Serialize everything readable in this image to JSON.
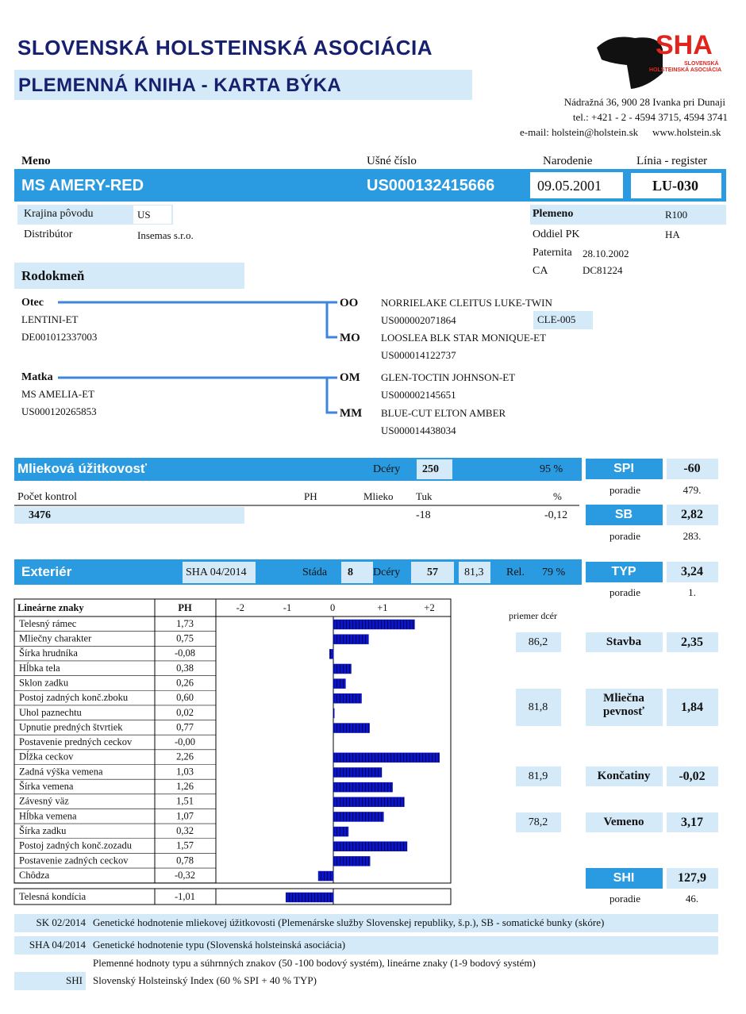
{
  "header": {
    "title": "SLOVENSKÁ HOLSTEINSKÁ ASOCIÁCIA",
    "subtitle": "PLEMENNÁ KNIHA - KARTA BÝKA",
    "logo": "SHA",
    "logo_line1": "SLOVENSKÁ",
    "logo_line2": "HOLSTEINSKÁ ASOCIÁCIA",
    "address": "Nádražná 36, 900 28 Ivanka pri Dunaji",
    "phone": "tel.: +421 - 2 - 4594 3715, 4594 3741",
    "email": "e-mail: holstein@holstein.sk",
    "web": "www.holstein.sk"
  },
  "bull": {
    "name_label": "Meno",
    "ear_label": "Ušné číslo",
    "birth_label": "Narodenie",
    "line_label": "Línia - register",
    "name": "MS AMERY-RED",
    "ear": "US000132415666",
    "birth": "09.05.2001",
    "line": "LU-030"
  },
  "info": {
    "country_label": "Krajina pôvodu",
    "country": "US",
    "distributor_label": "Distribútor",
    "distributor": "Insemas s.r.o.",
    "breed_label": "Plemeno",
    "breed": "R100",
    "section_label": "Oddiel PK",
    "section": "HA",
    "paternity_label": "Paternita",
    "paternity": "28.10.2002",
    "ca_label": "CA",
    "ca": "DC81224"
  },
  "pedigree": {
    "title": "Rodokmeň",
    "father": {
      "label": "Otec",
      "name": "LENTINI-ET",
      "id": "DE001012337003"
    },
    "mother": {
      "label": "Matka",
      "name": "MS AMELIA-ET",
      "id": "US000120265853"
    },
    "ancestors": [
      {
        "label": "OO",
        "name": "NORRIELAKE CLEITUS LUKE-TWIN",
        "id": "US000002071864",
        "line": "CLE-005"
      },
      {
        "label": "MO",
        "name": "LOOSLEA BLK STAR MONIQUE-ET",
        "id": "US000014122737"
      },
      {
        "label": "OM",
        "name": "GLEN-TOCTIN JOHNSON-ET",
        "id": "US000002145651"
      },
      {
        "label": "MM",
        "name": "BLUE-CUT ELTON AMBER",
        "id": "US000014438034"
      }
    ]
  },
  "milk": {
    "title": "Mlieková úžitkovosť",
    "daughters_label": "Dcéry",
    "daughters": "250",
    "rel": "95 %",
    "controls_label": "Počet kontrol",
    "controls": "3476",
    "ph_label": "PH",
    "milk_label": "Mlieko",
    "fat_label": "Tuk",
    "fat": "-18",
    "pct_label": "%",
    "protein_pct": "-0,12"
  },
  "exterior": {
    "title": "Exteriér",
    "eval": "SHA 04/2014",
    "herds_label": "Stáda",
    "herds": "8",
    "daughters_label": "Dcéry",
    "daughters": "57",
    "avg": "81,3",
    "rel_label": "Rel.",
    "rel": "79 %"
  },
  "linear": {
    "header": "Lineárne znaky",
    "ph_label": "PH",
    "color": "#0a14c8",
    "xlim": [
      -2.5,
      2.5
    ],
    "xticks": [
      -2,
      -1,
      0,
      {
        "value": 1,
        "label": "+1"
      },
      {
        "value": 2,
        "label": "+2"
      }
    ],
    "traits": [
      "Telesný rámec",
      "Mliečny charakter",
      "Šírka hrudníka",
      "Hĺbka tela",
      "Sklon zadku",
      "Postoj zadných konč.zboku",
      "Uhol paznechtu",
      "Upnutie predných štvrtiek",
      "Postavenie predných ceckov",
      "Dĺžka ceckov",
      "Zadná výška vemena",
      "Šírka vemena",
      "Závesný väz",
      "Hĺbka vemena",
      "Šírka zadku",
      "Postoj zadných konč.zozadu",
      "Postavenie zadných ceckov",
      "Chôdza",
      "Telesná kondícia"
    ],
    "values": [
      1.73,
      0.75,
      -0.08,
      0.38,
      0.26,
      0.6,
      0.02,
      0.77,
      0,
      2.26,
      1.03,
      1.26,
      1.51,
      1.07,
      0.32,
      1.57,
      0.78,
      -0.32,
      -1.01
    ],
    "value_labels": [
      "1,73",
      "0,75",
      "-0,08",
      "0,38",
      "0,26",
      "0,60",
      "0,02",
      "0,77",
      "-0,00",
      "2,26",
      "1,03",
      "1,26",
      "1,51",
      "1,07",
      "0,32",
      "1,57",
      "0,78",
      "-0,32",
      "-1,01"
    ]
  },
  "indexes": {
    "rank_label": "poradie",
    "spi": "SPI",
    "spi_value": "-60",
    "spi_rank": "479.",
    "sb": "SB",
    "sb_value": "2,82",
    "sb_rank": "283.",
    "typ": "TYP",
    "typ_value": "3,24",
    "typ_rank": "1.",
    "shi": "SHI",
    "shi_value": "127,9",
    "shi_rank": "46."
  },
  "type_traits": {
    "avg_label": "priemer dcér",
    "rows": [
      {
        "avg": "86,2",
        "label": "Stavba",
        "value": "2,35"
      },
      {
        "avg": "81,8",
        "label": "Mliečna pevnosť",
        "value": "1,84"
      },
      {
        "avg": "81,9",
        "label": "Končatiny",
        "value": "-0,02"
      },
      {
        "avg": "78,2",
        "label": "Vemeno",
        "value": "3,17"
      }
    ]
  },
  "notes": {
    "rows": [
      {
        "code": "SK 02/2014",
        "text": "Genetické hodnotenie mliekovej úžitkovosti (Plemenárske služby Slovenskej republiky, š.p.), SB - somatické bunky (skóre)"
      },
      {
        "code": "SHA 04/2014",
        "text": "Genetické hodnotenie typu (Slovenská holsteinská asociácia)"
      }
    ],
    "extra": "Plemenné hodnoty typu a súhrnných znakov (50 -100 bodový systém), lineárne znaky (1-9 bodový systém)",
    "shi_code": "SHI",
    "shi_text": "Slovenský Holsteinský Index (60 % SPI + 40 % TYP)"
  }
}
